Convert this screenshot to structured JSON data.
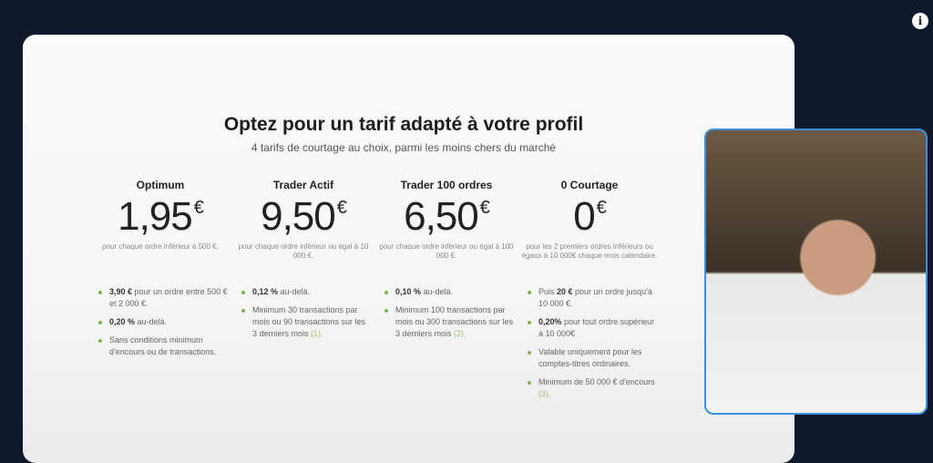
{
  "header": {
    "title": "Optez pour un tarif adapté à votre profil",
    "subtitle": "4 tarifs de courtage au choix, parmi les moins chers du marché"
  },
  "plans": [
    {
      "name": "Optimum",
      "price": "1,95",
      "currency": "€",
      "note": "pour chaque ordre inférieur à 500 €.",
      "bullets": [
        {
          "bold": "3,90 €",
          "text": " pour un ordre entre 500 € et 2 000 €.",
          "ref": ""
        },
        {
          "bold": "0,20 %",
          "text": " au-delà.",
          "ref": ""
        },
        {
          "bold": "",
          "text": "Sans conditions minimum d'encours ou de transactions.",
          "ref": ""
        }
      ]
    },
    {
      "name": "Trader Actif",
      "price": "9,50",
      "currency": "€",
      "note": "pour chaque ordre inférieur ou égal à 10 000 €.",
      "bullets": [
        {
          "bold": "0,12 %",
          "text": " au-delà.",
          "ref": ""
        },
        {
          "bold": "",
          "text": "Minimum 30 transactions par mois ou 90 transactions sur les 3 derniers mois ",
          "ref": "(1)."
        }
      ]
    },
    {
      "name": "Trader 100 ordres",
      "price": "6,50",
      "currency": "€",
      "note": "pour chaque ordre inférieur ou égal à 100 000 €.",
      "bullets": [
        {
          "bold": "0,10 %",
          "text": " au-delà.",
          "ref": ""
        },
        {
          "bold": "",
          "text": "Minimum 100 transactions par mois ou 300 transactions sur les 3 derniers mois ",
          "ref": "(2)."
        }
      ]
    },
    {
      "name": "0 Courtage",
      "price": "0",
      "currency": "€",
      "note": "pour les 2 premiers ordres inférieurs ou égaux à 10 000€ chaque mois calendaire.",
      "bullets": [
        {
          "pre": "Puis ",
          "bold": "20 €",
          "text": " pour un ordre jusqu'à 10 000 €.",
          "ref": ""
        },
        {
          "bold": "0,20%",
          "text": " pour tout ordre supérieur à 10 000€",
          "ref": ""
        },
        {
          "bold": "",
          "text": "Valable uniquement pour les comptes-titres ordinaires.",
          "ref": ""
        },
        {
          "bold": "",
          "text": "Minimum de 50 000 € d'encours ",
          "ref": "(3)."
        }
      ]
    }
  ],
  "info_icon": "info-icon",
  "accent": "#7ab648",
  "webcam_border": "#3b8fdc"
}
